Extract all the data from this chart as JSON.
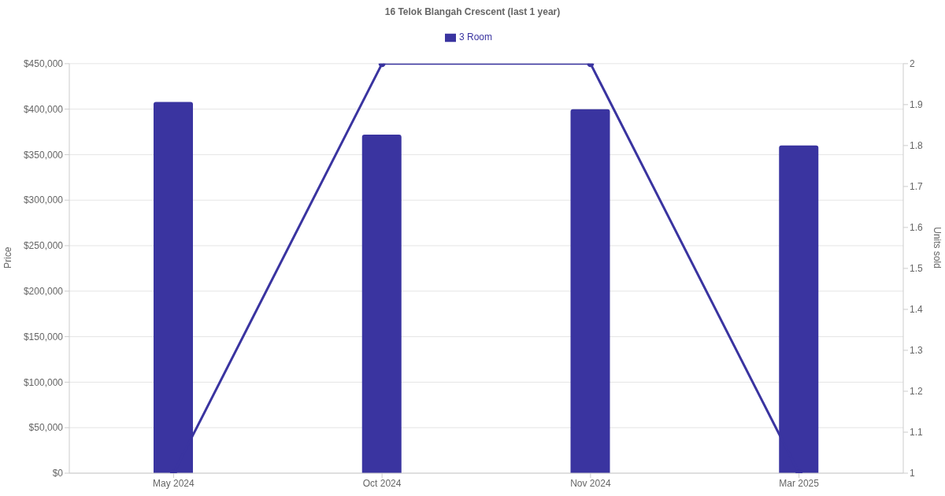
{
  "chart_data": {
    "type": "bar",
    "title": "16 Telok Blangah Crescent (last 1 year)",
    "categories": [
      "May 2024",
      "Oct 2024",
      "Nov 2024",
      "Mar 2025"
    ],
    "series": [
      {
        "name": "3 Room",
        "color": "#3a34a0",
        "values": [
          408000,
          372000,
          400000,
          360000
        ]
      },
      {
        "type": "line",
        "axis": "y2",
        "color": "#3a34a0",
        "values": [
          1,
          2,
          2,
          1
        ]
      }
    ],
    "ylabel": "Price",
    "y2label": "Units sold",
    "ylim": [
      0,
      450000
    ],
    "yticks": [
      {
        "value": 0,
        "label": "$0"
      },
      {
        "value": 50000,
        "label": "$50,000"
      },
      {
        "value": 100000,
        "label": "$100,000"
      },
      {
        "value": 150000,
        "label": "$150,000"
      },
      {
        "value": 200000,
        "label": "$200,000"
      },
      {
        "value": 250000,
        "label": "$250,000"
      },
      {
        "value": 300000,
        "label": "$300,000"
      },
      {
        "value": 350000,
        "label": "$350,000"
      },
      {
        "value": 400000,
        "label": "$400,000"
      },
      {
        "value": 450000,
        "label": "$450,000"
      }
    ],
    "y2lim": [
      1,
      2
    ],
    "y2ticks": [
      1,
      1.1,
      1.2,
      1.3,
      1.4,
      1.5,
      1.6,
      1.7,
      1.8,
      1.9,
      2
    ],
    "grid": "y",
    "legend": "top",
    "marker": "circle",
    "line_style": "solid"
  }
}
